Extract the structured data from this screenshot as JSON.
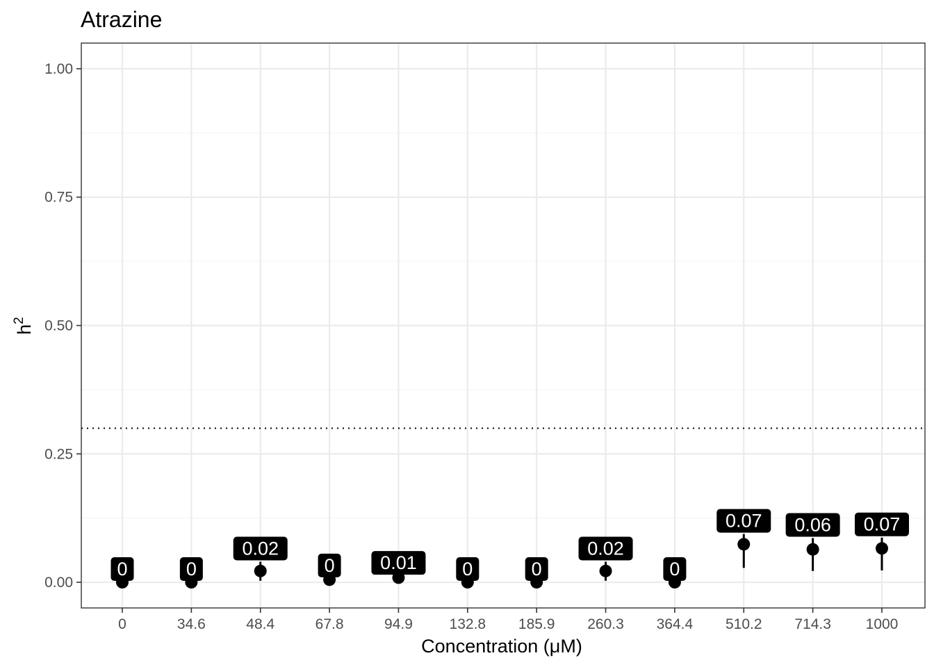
{
  "chart_data": {
    "type": "scatter",
    "title": "Atrazine",
    "xlabel": "Concentration (μM)",
    "ylabel": "h",
    "ylabel_superscript": "2",
    "categories": [
      "0",
      "34.6",
      "48.4",
      "67.8",
      "94.9",
      "132.8",
      "185.9",
      "260.3",
      "364.4",
      "510.2",
      "714.3",
      "1000"
    ],
    "values": [
      0,
      0,
      0.022,
      0.005,
      0.009,
      0,
      0,
      0.022,
      0,
      0.074,
      0.064,
      0.066
    ],
    "error_low": [
      0,
      0,
      0.003,
      0.003,
      0.006,
      0,
      0,
      0.003,
      0,
      0.028,
      0.022,
      0.023
    ],
    "error_high": [
      0,
      0,
      0.04,
      0.007,
      0.012,
      0,
      0,
      0.04,
      0,
      0.094,
      0.086,
      0.087
    ],
    "data_labels": [
      "0",
      "0",
      "0.02",
      "0",
      "0.01",
      "0",
      "0",
      "0.02",
      "0",
      "0.07",
      "0.06",
      "0.07"
    ],
    "y_ticks": [
      "0.00",
      "0.25",
      "0.50",
      "0.75",
      "1.00"
    ],
    "y_tick_values": [
      0,
      0.25,
      0.5,
      0.75,
      1.0
    ],
    "ylim": [
      -0.05,
      1.05
    ],
    "reference_line": 0.3,
    "grid": true,
    "legend": "none",
    "colors": {
      "point": "#000000",
      "label_bg": "#000000",
      "label_text": "#ffffff",
      "grid_major": "#ebebeb",
      "grid_minor": "#f5f5f5",
      "tick_text": "#4d4d4d",
      "panel_border": "#333333"
    }
  }
}
